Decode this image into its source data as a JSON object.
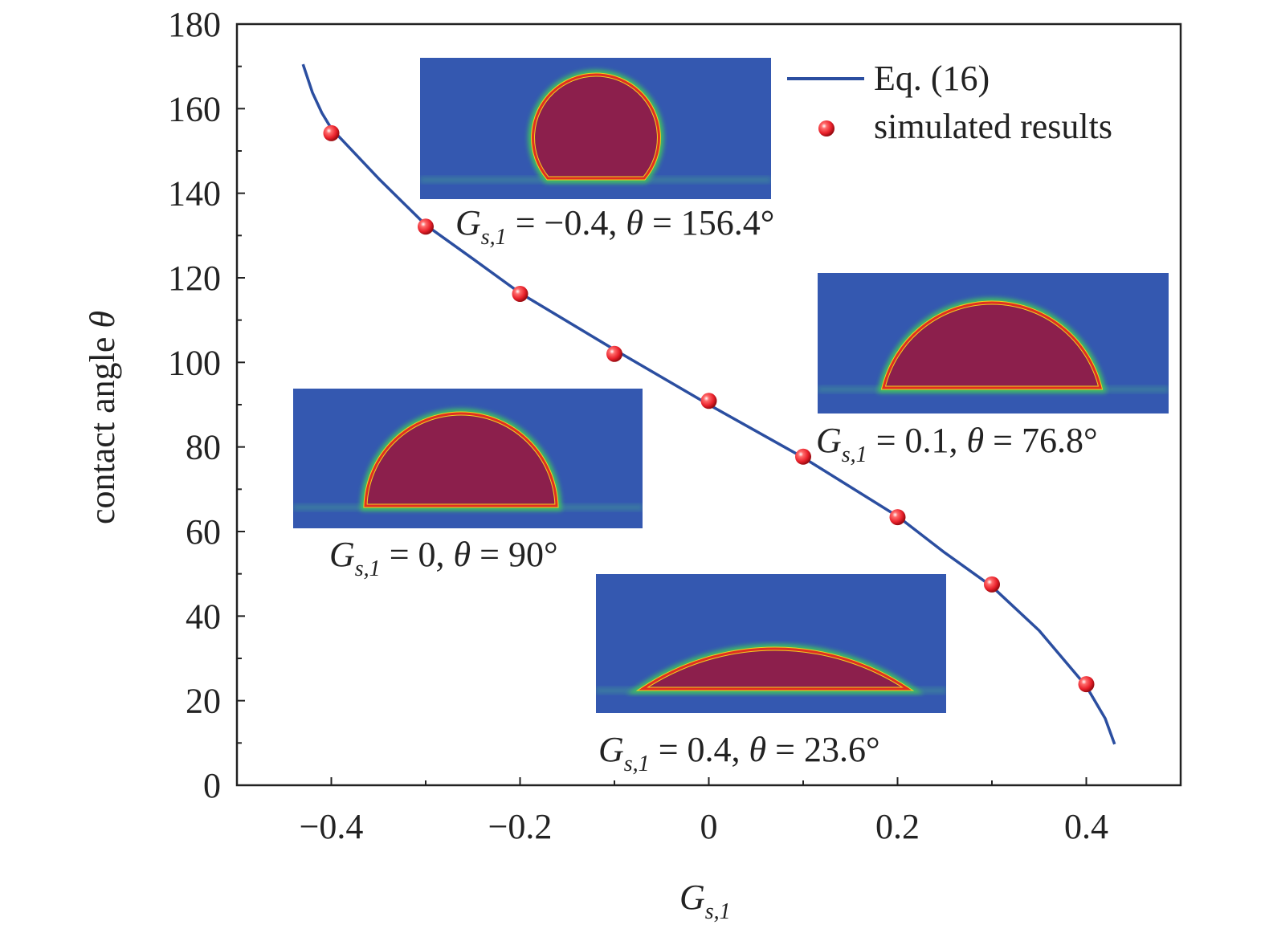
{
  "chart_data": {
    "type": "line",
    "title": "",
    "xlabel": {
      "symbol": "G",
      "sub": "s,1"
    },
    "ylabel": {
      "text": "contact angle ",
      "symbol": "θ"
    },
    "xlim": [
      -0.5,
      0.5
    ],
    "ylim": [
      0,
      180
    ],
    "x_ticks": [
      -0.4,
      -0.2,
      0,
      0.2,
      0.4
    ],
    "x_tick_labels": [
      "−0.4",
      "−0.2",
      "0",
      "0.2",
      "0.4"
    ],
    "x_minor_ticks": [
      -0.3,
      -0.1,
      0.1,
      0.3
    ],
    "y_ticks": [
      0,
      20,
      40,
      60,
      80,
      100,
      120,
      140,
      160,
      180
    ],
    "y_tick_labels": [
      "0",
      "20",
      "40",
      "60",
      "80",
      "100",
      "120",
      "140",
      "160",
      "180"
    ],
    "y_minor_ticks": [
      10,
      30,
      50,
      70,
      90,
      110,
      130,
      150,
      170
    ],
    "grid": false,
    "legend_position": "top-right",
    "series": [
      {
        "name": "Eq. (16)",
        "kind": "line",
        "color": "#2b4ea0",
        "x": [
          -0.43,
          -0.42,
          -0.41,
          -0.4,
          -0.35,
          -0.3,
          -0.25,
          -0.2,
          -0.1,
          0,
          0.1,
          0.2,
          0.25,
          0.3,
          0.35,
          0.4,
          0.42,
          0.43
        ],
        "y": [
          170.5,
          163.8,
          159,
          155.3,
          143.5,
          132.5,
          124.5,
          116.4,
          103,
          90,
          77.5,
          63.6,
          55,
          47,
          36.6,
          23.4,
          15.8,
          9.7
        ]
      },
      {
        "name": "simulated results",
        "kind": "scatter",
        "color": "#e8202a",
        "x": [
          -0.4,
          -0.3,
          -0.2,
          -0.1,
          0,
          0.1,
          0.2,
          0.3,
          0.4
        ],
        "y": [
          154.2,
          132.1,
          116.2,
          102,
          90.9,
          77.7,
          63.4,
          47.5,
          23.9
        ]
      }
    ],
    "annotations": [
      {
        "symbol": "G",
        "sub": "s,1",
        "eq1": " = −0.4, ",
        "theta": "θ",
        "eq2": " = 156.4°",
        "gs": -0.4,
        "angle": 156.4
      },
      {
        "symbol": "G",
        "sub": "s,1",
        "eq1": " =  0.1, ",
        "theta": "θ",
        "eq2": " = 76.8°",
        "gs": 0.1,
        "angle": 76.8
      },
      {
        "symbol": "G",
        "sub": "s,1",
        "eq1": " = 0, ",
        "theta": "θ",
        "eq2": " = 90°",
        "gs": 0,
        "angle": 90
      },
      {
        "symbol": "G",
        "sub": "s,1",
        "eq1": " = 0.4, ",
        "theta": "θ",
        "eq2": " = 23.6°",
        "gs": 0.4,
        "angle": 23.6
      }
    ],
    "colors": {
      "substrate_bg": "#3458b0",
      "droplet": "#8c1f4c",
      "interface_outer": "#3fc060",
      "interface_inner": "#f0d020"
    }
  }
}
